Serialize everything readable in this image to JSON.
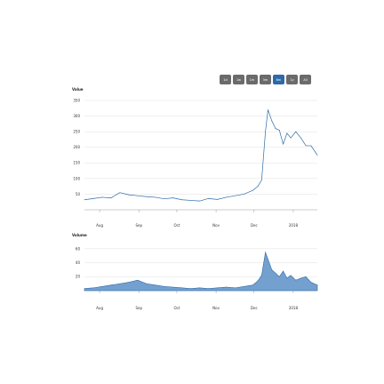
{
  "range_selector": {
    "buttons": [
      {
        "label": "1d",
        "active": false
      },
      {
        "label": "1w",
        "active": false
      },
      {
        "label": "1m",
        "active": false
      },
      {
        "label": "3m",
        "active": false
      },
      {
        "label": "6m",
        "active": true
      },
      {
        "label": "1y",
        "active": false
      },
      {
        "label": "All",
        "active": false
      }
    ],
    "colors": {
      "button": "#6b6b6b",
      "active": "#2f6aa8",
      "text": "#ffffff"
    }
  },
  "colors": {
    "line": "#2f6aa8",
    "area": "#5b8fc7",
    "grid": "#e6e6e6",
    "axis": "#999999"
  },
  "chart_data": [
    {
      "type": "line",
      "ylabel": "Value",
      "y_ticks": [
        "350",
        "300",
        "250",
        "200",
        "150",
        "100",
        "50"
      ],
      "ylim": [
        0,
        350
      ],
      "x_ticks": [
        "Aug",
        "Sep",
        "Oct",
        "Nov",
        "Dec",
        "2018"
      ],
      "x_range": [
        "2017-07-20",
        "2018-01-20"
      ],
      "grid": true,
      "x": [
        "2017-07-20",
        "2017-07-27",
        "2017-08-03",
        "2017-08-10",
        "2017-08-17",
        "2017-08-24",
        "2017-08-31",
        "2017-09-07",
        "2017-09-14",
        "2017-09-21",
        "2017-09-28",
        "2017-10-05",
        "2017-10-12",
        "2017-10-19",
        "2017-10-26",
        "2017-11-02",
        "2017-11-09",
        "2017-11-16",
        "2017-11-23",
        "2017-11-30",
        "2017-12-04",
        "2017-12-07",
        "2017-12-10",
        "2017-12-12",
        "2017-12-15",
        "2017-12-18",
        "2017-12-21",
        "2017-12-24",
        "2017-12-27",
        "2017-12-30",
        "2018-01-03",
        "2018-01-07",
        "2018-01-11",
        "2018-01-15",
        "2018-01-20"
      ],
      "values": [
        32,
        36,
        40,
        38,
        55,
        48,
        45,
        42,
        40,
        35,
        38,
        32,
        30,
        28,
        36,
        33,
        40,
        45,
        50,
        62,
        75,
        95,
        250,
        320,
        285,
        260,
        255,
        210,
        245,
        230,
        250,
        230,
        205,
        205,
        175
      ]
    },
    {
      "type": "area",
      "ylabel": "Volume",
      "y_ticks": [
        "60",
        "40",
        "20"
      ],
      "ylim": [
        0,
        70
      ],
      "x_ticks": [
        "Aug",
        "Sep",
        "Oct",
        "Nov",
        "Dec",
        "2018"
      ],
      "x_range": [
        "2017-07-20",
        "2018-01-20"
      ],
      "grid": true,
      "x": [
        "2017-07-20",
        "2017-07-27",
        "2017-08-03",
        "2017-08-10",
        "2017-08-17",
        "2017-08-24",
        "2017-08-31",
        "2017-09-07",
        "2017-09-14",
        "2017-09-21",
        "2017-09-28",
        "2017-10-05",
        "2017-10-12",
        "2017-10-19",
        "2017-10-26",
        "2017-11-02",
        "2017-11-09",
        "2017-11-16",
        "2017-11-23",
        "2017-11-30",
        "2017-12-04",
        "2017-12-07",
        "2017-12-10",
        "2017-12-12",
        "2017-12-15",
        "2017-12-18",
        "2017-12-21",
        "2017-12-24",
        "2017-12-27",
        "2017-12-30",
        "2018-01-03",
        "2018-01-07",
        "2018-01-11",
        "2018-01-15",
        "2018-01-20"
      ],
      "values": [
        3,
        4,
        6,
        8,
        10,
        12,
        15,
        10,
        8,
        6,
        5,
        4,
        3,
        4,
        3,
        4,
        5,
        4,
        6,
        8,
        14,
        22,
        55,
        45,
        30,
        25,
        20,
        28,
        18,
        22,
        15,
        18,
        20,
        12,
        8
      ]
    }
  ]
}
